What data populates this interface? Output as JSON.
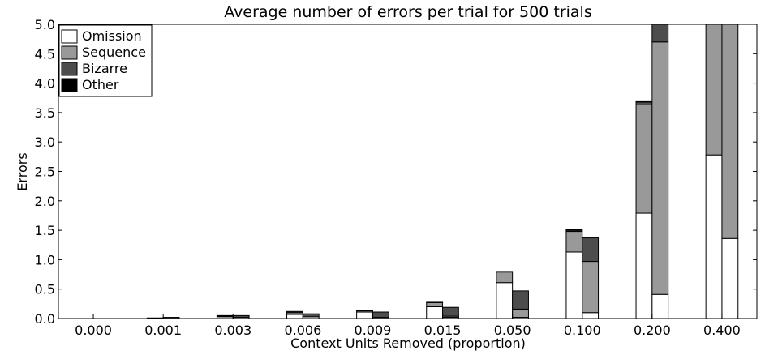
{
  "chart_data": {
    "type": "bar",
    "title": "Average number of errors per trial for 500 trials",
    "xlabel": "Context Units Removed (proportion)",
    "ylabel": "Errors",
    "ylim": [
      0,
      5.0
    ],
    "yticks": [
      "0.0",
      "0.5",
      "1.0",
      "1.5",
      "2.0",
      "2.5",
      "3.0",
      "3.5",
      "4.0",
      "4.5",
      "5.0"
    ],
    "categories": [
      "0.000",
      "0.001",
      "0.003",
      "0.006",
      "0.009",
      "0.015",
      "0.050",
      "0.100",
      "0.200",
      "0.400"
    ],
    "stacked": true,
    "bars_per_category": 2,
    "legend_position": "upper-left",
    "grid": false,
    "series": [
      {
        "name": "Omission",
        "color": "#ffffff",
        "left": [
          0.0,
          0.0,
          0.03,
          0.07,
          0.11,
          0.2,
          0.61,
          1.13,
          1.79,
          2.78
        ],
        "right": [
          0.0,
          0.0,
          0.02,
          0.03,
          0.0,
          0.02,
          0.02,
          0.1,
          0.41,
          1.36
        ]
      },
      {
        "name": "Sequence",
        "color": "#999999",
        "left": [
          0.0,
          0.0,
          0.01,
          0.03,
          0.02,
          0.07,
          0.18,
          0.35,
          1.84,
          2.4
        ],
        "right": [
          0.0,
          0.0,
          0.0,
          0.0,
          0.02,
          0.02,
          0.14,
          0.87,
          4.29,
          3.7
        ]
      },
      {
        "name": "Bizarre",
        "color": "#4d4d4d",
        "left": [
          0.0,
          0.01,
          0.01,
          0.02,
          0.01,
          0.02,
          0.01,
          0.02,
          0.05,
          0.3
        ],
        "right": [
          0.0,
          0.02,
          0.03,
          0.05,
          0.09,
          0.15,
          0.31,
          0.4,
          0.48,
          0.5
        ]
      },
      {
        "name": "Other",
        "color": "#000000",
        "left": [
          0.0,
          0.0,
          0.0,
          0.0,
          0.0,
          0.0,
          0.0,
          0.02,
          0.02,
          0.02
        ],
        "right": [
          0.0,
          0.0,
          0.0,
          0.0,
          0.0,
          0.0,
          0.0,
          0.0,
          0.01,
          0.0
        ]
      }
    ]
  }
}
